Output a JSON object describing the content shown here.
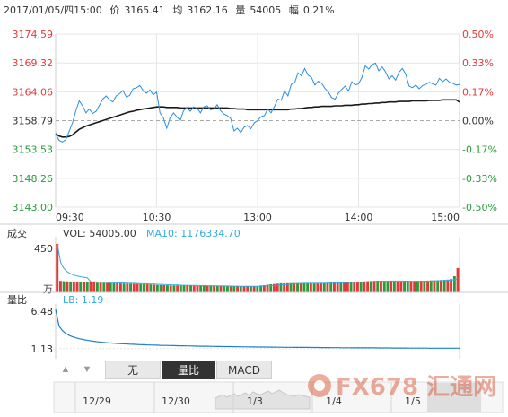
{
  "header": {
    "datetime": "2017/01/05/四15:00",
    "price_label": "价",
    "price": "3165.41",
    "avg_label": "均",
    "avg": "3162.16",
    "vol_label": "量",
    "vol": "54005",
    "change_label": "幅",
    "change": "0.21%"
  },
  "colors": {
    "price_line": "#2b8ee0",
    "avg_line": "#1a1a1a",
    "up": "#e03b3b",
    "down": "#2b9a3a",
    "ma10": "#33aadd",
    "grid": "#e6e6e6"
  },
  "chart_data": [
    {
      "type": "line",
      "name": "intraday-price",
      "y_ticks_left": [
        "3174.59",
        "3169.32",
        "3164.06",
        "3158.79",
        "3153.53",
        "3148.26",
        "3143.00"
      ],
      "y_ticks_right": [
        "0.50%",
        "0.33%",
        "0.17%",
        "0.00%",
        "-0.17%",
        "-0.33%",
        "-0.50%"
      ],
      "ylim": [
        3143.0,
        3174.59
      ],
      "prev_close": 3158.79,
      "x_ticks": [
        "09:30",
        "10:30",
        "13:00",
        "14:00",
        "15:00"
      ],
      "x_minutes": [
        0,
        60,
        120,
        180,
        240
      ],
      "x": [
        0,
        2,
        4,
        6,
        8,
        10,
        12,
        14,
        16,
        18,
        20,
        22,
        24,
        26,
        28,
        30,
        32,
        34,
        36,
        38,
        40,
        42,
        44,
        46,
        48,
        50,
        52,
        54,
        56,
        58,
        60,
        62,
        64,
        66,
        68,
        70,
        72,
        74,
        76,
        78,
        80,
        82,
        84,
        86,
        88,
        90,
        92,
        94,
        96,
        98,
        100,
        102,
        104,
        106,
        108,
        110,
        112,
        114,
        116,
        118,
        120,
        122,
        124,
        126,
        128,
        130,
        132,
        134,
        136,
        138,
        140,
        142,
        144,
        146,
        148,
        150,
        152,
        154,
        156,
        158,
        160,
        162,
        164,
        166,
        168,
        170,
        172,
        174,
        176,
        178,
        180,
        182,
        184,
        186,
        188,
        190,
        192,
        194,
        196,
        198,
        200,
        202,
        204,
        206,
        208,
        210,
        212,
        214,
        216,
        218,
        220,
        222,
        224,
        226,
        228,
        230,
        232,
        234,
        236,
        238,
        240
      ],
      "series": [
        {
          "values": [
            3156.4,
            3155.2,
            3154.9,
            3155.3,
            3156.8,
            3158.4,
            3160.6,
            3162.4,
            3161.5,
            3160.2,
            3160.9,
            3160.1,
            3160.5,
            3161.6,
            3162.7,
            3163.3,
            3162.6,
            3162.2,
            3163.3,
            3163.7,
            3164.3,
            3163.1,
            3163.4,
            3164.6,
            3164.8,
            3165.2,
            3164.3,
            3163.8,
            3164.4,
            3163.5,
            3164.0,
            3160.2,
            3159.3,
            3157.4,
            3159.3,
            3160.2,
            3159.5,
            3158.8,
            3160.6,
            3161.2,
            3160.5,
            3161.3,
            3161.1,
            3160.2,
            3161.3,
            3161.5,
            3160.8,
            3160.9,
            3161.7,
            3160.6,
            3160.0,
            3159.7,
            3159.2,
            3156.9,
            3157.4,
            3156.6,
            3157.6,
            3157.9,
            3157.3,
            3158.4,
            3158.8,
            3159.5,
            3159.7,
            3160.9,
            3160.2,
            3161.4,
            3162.7,
            3162.5,
            3164.2,
            3163.3,
            3165.4,
            3165.7,
            3167.5,
            3167.0,
            3168.3,
            3167.1,
            3166.7,
            3165.3,
            3166.0,
            3165.6,
            3164.7,
            3164.0,
            3163.0,
            3162.7,
            3163.8,
            3164.5,
            3165.1,
            3164.2,
            3165.9,
            3165.3,
            3165.5,
            3166.7,
            3168.8,
            3168.2,
            3169.0,
            3169.3,
            3167.9,
            3168.6,
            3167.7,
            3166.4,
            3167.0,
            3166.2,
            3167.6,
            3168.3,
            3167.3,
            3165.1,
            3164.8,
            3165.3,
            3164.6,
            3165.2,
            3165.4,
            3165.8,
            3165.5,
            3165.3,
            3166.5,
            3165.9,
            3166.4,
            3165.8,
            3165.6,
            3165.3,
            3165.41
          ]
        },
        {
          "values": [
            3156.4,
            3156.0,
            3155.8,
            3155.8,
            3155.9,
            3156.2,
            3156.7,
            3157.2,
            3157.5,
            3157.8,
            3158.0,
            3158.2,
            3158.4,
            3158.6,
            3158.8,
            3159.0,
            3159.2,
            3159.4,
            3159.6,
            3159.8,
            3160.0,
            3160.2,
            3160.4,
            3160.5,
            3160.7,
            3160.8,
            3160.9,
            3161.0,
            3161.1,
            3161.2,
            3161.3,
            3161.3,
            3161.3,
            3161.2,
            3161.2,
            3161.2,
            3161.2,
            3161.1,
            3161.1,
            3161.1,
            3161.1,
            3161.1,
            3161.1,
            3161.1,
            3161.1,
            3161.1,
            3161.1,
            3161.1,
            3161.1,
            3161.1,
            3161.1,
            3161.1,
            3161.0,
            3161.0,
            3160.9,
            3160.9,
            3160.9,
            3160.8,
            3160.8,
            3160.8,
            3160.8,
            3160.8,
            3160.8,
            3160.8,
            3160.8,
            3160.8,
            3160.8,
            3160.8,
            3160.8,
            3160.8,
            3160.9,
            3160.9,
            3161.0,
            3161.0,
            3161.1,
            3161.2,
            3161.2,
            3161.3,
            3161.3,
            3161.4,
            3161.4,
            3161.4,
            3161.4,
            3161.5,
            3161.5,
            3161.5,
            3161.6,
            3161.6,
            3161.6,
            3161.7,
            3161.7,
            3161.8,
            3161.8,
            3161.9,
            3161.9,
            3162.0,
            3162.0,
            3162.1,
            3162.1,
            3162.2,
            3162.2,
            3162.2,
            3162.3,
            3162.3,
            3162.3,
            3162.3,
            3162.4,
            3162.4,
            3162.4,
            3162.4,
            3162.4,
            3162.5,
            3162.5,
            3162.5,
            3162.5,
            3162.6,
            3162.6,
            3162.6,
            3162.6,
            3162.6,
            3162.16
          ]
        }
      ]
    },
    {
      "type": "bar",
      "name": "volume",
      "label": "成交",
      "vol_text": "VOL: 54005.00",
      "ma_text": "MA10: 1176334.70",
      "y_ticks": [
        "450"
      ],
      "unit": "万",
      "ylim": [
        0,
        450
      ],
      "values": [
        420,
        99,
        96,
        95,
        94,
        93,
        92,
        90,
        88,
        87,
        86,
        85,
        84,
        83,
        82,
        81,
        80,
        79,
        78,
        77,
        76,
        75,
        74,
        73,
        72,
        71,
        70,
        69,
        68,
        66,
        64,
        63,
        62,
        61,
        60,
        60,
        60,
        60,
        59,
        58,
        58,
        57,
        57,
        56,
        56,
        55,
        55,
        54,
        54,
        54,
        53,
        53,
        52,
        52,
        52,
        52,
        54,
        55,
        53,
        52,
        52,
        60,
        62,
        66,
        70,
        72,
        75,
        78,
        78,
        79,
        80,
        81,
        80,
        79,
        78,
        77,
        76,
        76,
        75,
        80,
        82,
        84,
        85,
        87,
        88,
        90,
        92,
        91,
        90,
        89,
        90,
        92,
        94,
        96,
        98,
        99,
        101,
        100,
        99,
        98,
        97,
        96,
        95,
        94,
        93,
        95,
        96,
        98,
        99,
        100,
        101,
        102,
        103,
        104,
        105,
        106,
        108,
        110,
        115,
        140,
        210
      ],
      "up_flags": [
        1,
        1,
        0,
        1,
        0,
        1,
        1,
        0,
        1,
        0,
        1,
        1,
        0,
        1,
        0,
        1,
        0,
        0,
        1,
        1,
        0,
        1,
        0,
        1,
        1,
        0,
        0,
        1,
        0,
        1,
        0,
        0,
        1,
        0,
        1,
        0,
        1,
        0,
        0,
        1,
        0,
        1,
        1,
        0,
        0,
        1,
        0,
        1,
        0,
        1,
        0,
        0,
        1,
        0,
        1,
        0,
        1,
        1,
        0,
        1,
        0,
        0,
        1,
        1,
        0,
        1,
        1,
        0,
        1,
        1,
        0,
        1,
        0,
        1,
        0,
        0,
        1,
        0,
        1,
        1,
        0,
        1,
        0,
        1,
        1,
        0,
        1,
        1,
        0,
        1,
        1,
        0,
        1,
        1,
        0,
        1,
        0,
        1,
        0,
        0,
        1,
        0,
        1,
        1,
        0,
        0,
        1,
        1,
        0,
        1,
        0,
        1,
        0,
        1,
        0,
        1,
        0,
        1,
        1,
        0,
        1
      ]
    },
    {
      "type": "line",
      "name": "volume-ratio",
      "label": "量比",
      "lb_text": "LB: 1.19",
      "y_ticks": [
        "6.48",
        "1.13"
      ],
      "ylim": [
        0,
        6.48
      ],
      "values": [
        6.48,
        4.2,
        3.6,
        3.2,
        2.95,
        2.75,
        2.6,
        2.48,
        2.38,
        2.3,
        2.22,
        2.15,
        2.09,
        2.04,
        1.99,
        1.95,
        1.91,
        1.88,
        1.85,
        1.82,
        1.79,
        1.77,
        1.74,
        1.72,
        1.7,
        1.68,
        1.66,
        1.64,
        1.63,
        1.61,
        1.6,
        1.58,
        1.57,
        1.56,
        1.55,
        1.54,
        1.53,
        1.52,
        1.51,
        1.5,
        1.49,
        1.48,
        1.47,
        1.46,
        1.45,
        1.45,
        1.44,
        1.43,
        1.42,
        1.42,
        1.41,
        1.4,
        1.4,
        1.39,
        1.38,
        1.38,
        1.37,
        1.37,
        1.36,
        1.36,
        1.35,
        1.35,
        1.34,
        1.34,
        1.33,
        1.33,
        1.32,
        1.32,
        1.31,
        1.31,
        1.31,
        1.3,
        1.3,
        1.29,
        1.29,
        1.29,
        1.28,
        1.28,
        1.28,
        1.27,
        1.27,
        1.27,
        1.26,
        1.26,
        1.26,
        1.25,
        1.25,
        1.25,
        1.24,
        1.24,
        1.24,
        1.24,
        1.23,
        1.23,
        1.23,
        1.23,
        1.22,
        1.22,
        1.22,
        1.22,
        1.21,
        1.21,
        1.21,
        1.21,
        1.21,
        1.2,
        1.2,
        1.2,
        1.2,
        1.2,
        1.2,
        1.19,
        1.19,
        1.19,
        1.19,
        1.19,
        1.19,
        1.19,
        1.19,
        1.19,
        1.19
      ]
    }
  ],
  "toolbar": {
    "prev_arrow": "▲",
    "next_arrow": "▼",
    "tabs": [
      {
        "label": "无"
      },
      {
        "label": "量比"
      },
      {
        "label": "MACD"
      }
    ]
  },
  "timeline": {
    "dates": [
      "12/29",
      "12/30",
      "1/3",
      "1/4",
      "1/5"
    ]
  },
  "watermark": {
    "text": "FX678 汇通网"
  }
}
